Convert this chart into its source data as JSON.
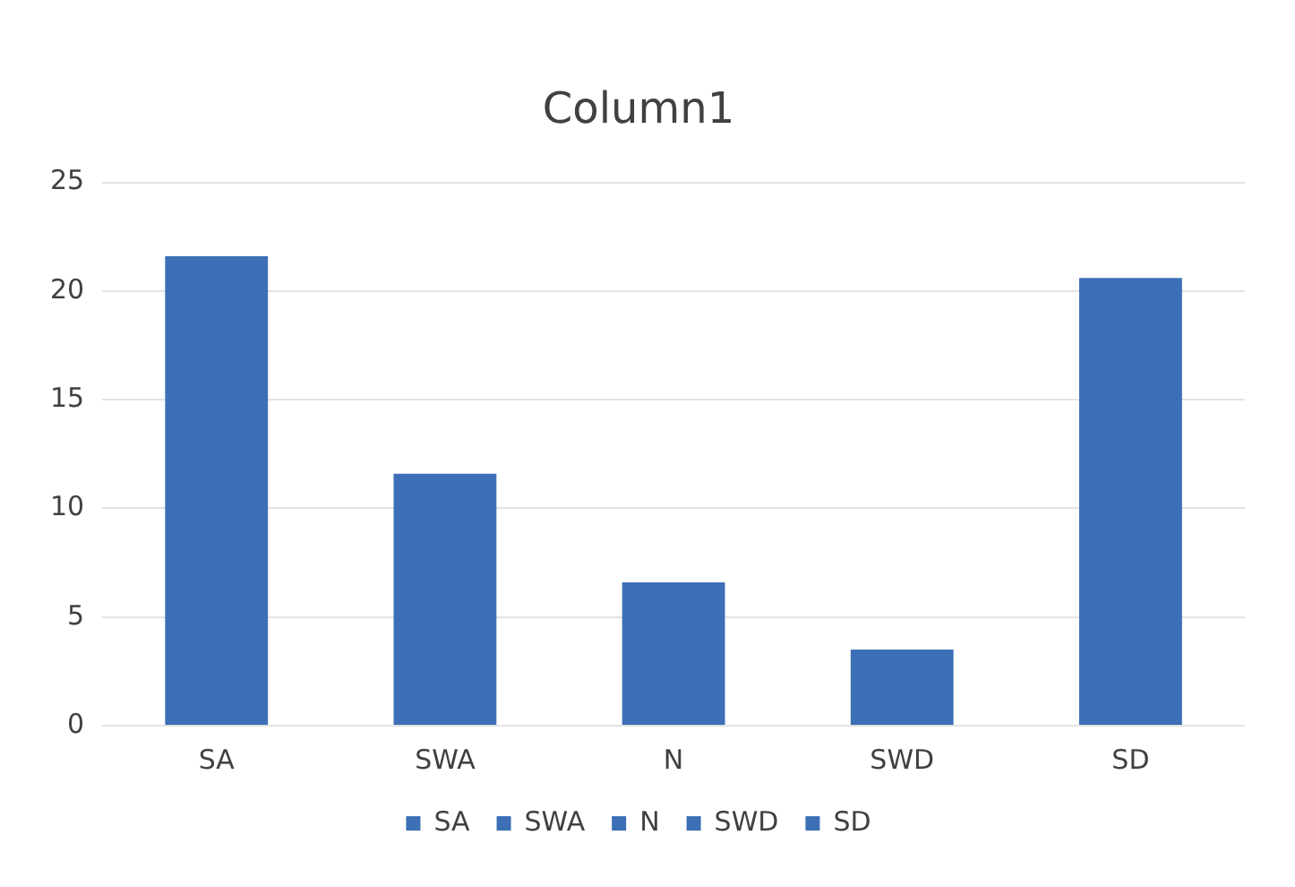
{
  "chart_data": {
    "type": "bar",
    "title": "Column1",
    "categories": [
      "SA",
      "SWA",
      "N",
      "SWD",
      "SD"
    ],
    "series": [
      {
        "name": "SA",
        "color": "#3c6fb5",
        "values": [
          21.6,
          null,
          null,
          null,
          null
        ]
      },
      {
        "name": "SWA",
        "color": "#3c6fb5",
        "values": [
          null,
          11.6,
          null,
          null,
          null
        ]
      },
      {
        "name": "N",
        "color": "#3c6fb5",
        "values": [
          null,
          null,
          6.6,
          null,
          null
        ]
      },
      {
        "name": "SWD",
        "color": "#3c6fb5",
        "values": [
          null,
          null,
          null,
          3.5,
          null
        ]
      },
      {
        "name": "SD",
        "color": "#3c6fb5",
        "values": [
          null,
          null,
          null,
          null,
          20.6
        ]
      }
    ],
    "stacked": true,
    "ylim": [
      0,
      25
    ],
    "yticks": [
      0,
      5,
      10,
      15,
      20,
      25
    ],
    "grid": "y",
    "legend": "bottom"
  }
}
